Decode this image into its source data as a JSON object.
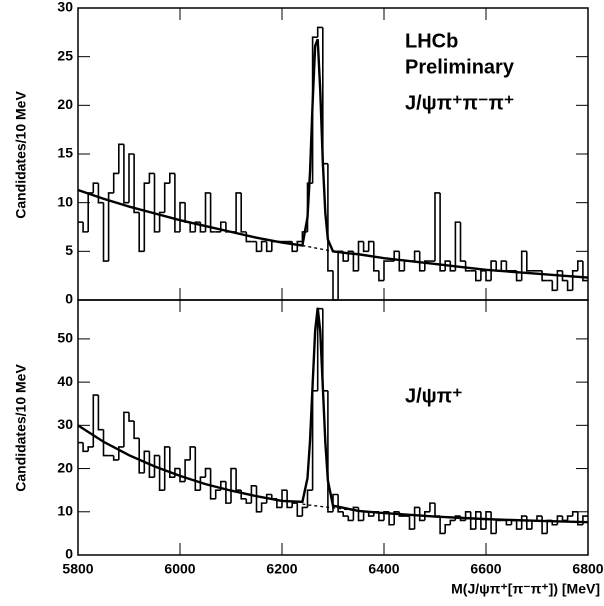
{
  "chart_data": [
    {
      "type": "histogram",
      "ylabel": "Candidates/10 MeV",
      "annotations": [
        "LHCb",
        "Preliminary",
        "J/ψπ⁺π⁻π⁺"
      ],
      "bins": [
        5800,
        5810,
        5820,
        5830,
        5840,
        5850,
        5860,
        5870,
        5880,
        5890,
        5900,
        5910,
        5920,
        5930,
        5940,
        5950,
        5960,
        5970,
        5980,
        5990,
        6000,
        6010,
        6020,
        6030,
        6040,
        6050,
        6060,
        6070,
        6080,
        6090,
        6100,
        6110,
        6120,
        6130,
        6140,
        6150,
        6160,
        6170,
        6180,
        6190,
        6200,
        6210,
        6220,
        6230,
        6240,
        6250,
        6260,
        6270,
        6280,
        6290,
        6300,
        6310,
        6320,
        6330,
        6340,
        6350,
        6360,
        6370,
        6380,
        6390,
        6400,
        6410,
        6420,
        6430,
        6440,
        6450,
        6460,
        6470,
        6480,
        6490,
        6500,
        6510,
        6520,
        6530,
        6540,
        6550,
        6560,
        6570,
        6580,
        6590,
        6600,
        6610,
        6620,
        6630,
        6640,
        6650,
        6660,
        6670,
        6680,
        6690,
        6700,
        6710,
        6720,
        6730,
        6740,
        6750,
        6760,
        6770,
        6780,
        6790,
        6800
      ],
      "counts": [
        8,
        7,
        11,
        12,
        10,
        4,
        11,
        13,
        16,
        10,
        15,
        9,
        5,
        12,
        13,
        7,
        9,
        12,
        13,
        7,
        10,
        8,
        7,
        8,
        7,
        11,
        7,
        7,
        8,
        7,
        7,
        11,
        7,
        6,
        6,
        5,
        6,
        5,
        6,
        6,
        6,
        6,
        5,
        6,
        7,
        12,
        27,
        28,
        14,
        3,
        0,
        5,
        4,
        5,
        3,
        6,
        5,
        6,
        3,
        2,
        4,
        4,
        5,
        3,
        4,
        4,
        5,
        3,
        4,
        4,
        11,
        3,
        4,
        3,
        8,
        4,
        3,
        3,
        2,
        3,
        2,
        4,
        3,
        4,
        3,
        3,
        2,
        5,
        3,
        3,
        3,
        2,
        2,
        1,
        3,
        2,
        1,
        3,
        4,
        2
      ],
      "lines": [
        {
          "style": "solid",
          "x": [
            5800,
            5850,
            5900,
            5950,
            6000,
            6050,
            6100,
            6150,
            6200,
            6240,
            6250,
            6255,
            6260,
            6265,
            6270,
            6275,
            6280,
            6285,
            6290,
            6300,
            6330,
            6350,
            6400,
            6450,
            6500,
            6550,
            6600,
            6650,
            6700,
            6750,
            6800
          ],
          "values": [
            11.3,
            10.4,
            9.6,
            8.9,
            8.2,
            7.6,
            7.0,
            6.4,
            5.9,
            5.6,
            8.5,
            13.2,
            20.2,
            26.1,
            26.8,
            21.5,
            14.2,
            8.9,
            6.2,
            5.0,
            4.8,
            4.7,
            4.3,
            4.0,
            3.7,
            3.4,
            3.1,
            2.9,
            2.7,
            2.5,
            2.3
          ]
        },
        {
          "style": "dashed",
          "x": [
            6240,
            6250,
            6260,
            6270,
            6280,
            6290,
            6300,
            6330
          ],
          "values": [
            5.6,
            5.5,
            5.4,
            5.3,
            5.2,
            5.1,
            5.0,
            4.8
          ]
        }
      ],
      "xlim": [
        5800,
        6800
      ],
      "ylim": [
        0,
        30
      ],
      "yticks": [
        0,
        5,
        10,
        15,
        20,
        25,
        30
      ]
    },
    {
      "type": "histogram",
      "ylabel": "Candidates/10 MeV",
      "xlabel": "M(J/ψπ⁺[π⁻π⁺]) [MeV]",
      "annotations": [
        "J/ψπ⁺"
      ],
      "bins": [
        5800,
        5810,
        5820,
        5830,
        5840,
        5850,
        5860,
        5870,
        5880,
        5890,
        5900,
        5910,
        5920,
        5930,
        5940,
        5950,
        5960,
        5970,
        5980,
        5990,
        6000,
        6010,
        6020,
        6030,
        6040,
        6050,
        6060,
        6070,
        6080,
        6090,
        6100,
        6110,
        6120,
        6130,
        6140,
        6150,
        6160,
        6170,
        6180,
        6190,
        6200,
        6210,
        6220,
        6230,
        6240,
        6250,
        6260,
        6270,
        6280,
        6290,
        6300,
        6310,
        6320,
        6330,
        6340,
        6350,
        6360,
        6370,
        6380,
        6390,
        6400,
        6410,
        6420,
        6430,
        6440,
        6450,
        6460,
        6470,
        6480,
        6490,
        6500,
        6510,
        6520,
        6530,
        6540,
        6550,
        6560,
        6570,
        6580,
        6590,
        6600,
        6610,
        6620,
        6630,
        6640,
        6650,
        6660,
        6670,
        6680,
        6690,
        6700,
        6710,
        6720,
        6730,
        6740,
        6750,
        6760,
        6770,
        6780,
        6790,
        6800
      ],
      "counts": [
        26,
        24,
        25,
        37,
        29,
        23,
        23,
        22,
        25,
        33,
        31,
        27,
        19,
        24,
        18,
        23,
        15,
        25,
        18,
        20,
        17,
        22,
        25,
        15,
        18,
        20,
        13,
        15,
        17,
        12,
        20,
        15,
        13,
        12,
        16,
        10,
        12,
        14,
        13,
        11,
        15,
        11,
        12,
        9,
        11,
        15,
        38,
        57,
        38,
        10,
        14,
        10,
        9,
        8,
        11,
        8,
        10,
        9,
        10,
        8,
        10,
        7,
        10,
        9,
        9,
        6,
        11,
        8,
        10,
        12,
        9,
        5,
        7,
        8,
        9,
        8,
        10,
        6,
        10,
        6,
        10,
        5,
        8,
        8,
        7,
        8,
        6,
        9,
        6,
        8,
        9,
        5,
        8,
        7,
        9,
        8,
        9,
        10,
        7,
        9
      ],
      "lines": [
        {
          "style": "solid",
          "x": [
            5800,
            5850,
            5900,
            5950,
            6000,
            6050,
            6100,
            6150,
            6200,
            6240,
            6250,
            6255,
            6260,
            6265,
            6270,
            6275,
            6280,
            6285,
            6290,
            6300,
            6350,
            6400,
            6450,
            6500,
            6600,
            6700,
            6800
          ],
          "values": [
            30,
            26.2,
            23.1,
            20.5,
            18.3,
            16.4,
            14.9,
            13.6,
            12.5,
            12.3,
            17.8,
            26.5,
            39.3,
            51.9,
            57.2,
            51.8,
            39.0,
            26.0,
            17.2,
            11.4,
            10.2,
            9.7,
            9.3,
            8.9,
            8.3,
            7.9,
            7.6
          ]
        },
        {
          "style": "dashed",
          "x": [
            6240,
            6250,
            6300,
            6350
          ],
          "values": [
            11.8,
            11.6,
            10.9,
            10.2
          ]
        }
      ],
      "xlim": [
        5800,
        6800
      ],
      "ylim": [
        0,
        59
      ],
      "yticks": [
        0,
        10,
        20,
        30,
        40,
        50
      ],
      "xticks": [
        5800,
        6000,
        6200,
        6400,
        6600,
        6800
      ]
    }
  ]
}
